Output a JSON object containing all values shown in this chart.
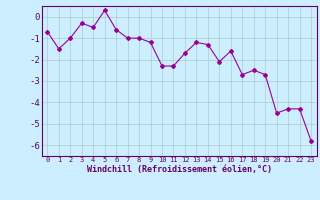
{
  "x": [
    0,
    1,
    2,
    3,
    4,
    5,
    6,
    7,
    8,
    9,
    10,
    11,
    12,
    13,
    14,
    15,
    16,
    17,
    18,
    19,
    20,
    21,
    22,
    23
  ],
  "y": [
    -0.7,
    -1.5,
    -1.0,
    -0.3,
    -0.5,
    0.3,
    -0.6,
    -1.0,
    -1.0,
    -1.2,
    -2.3,
    -2.3,
    -1.7,
    -1.2,
    -1.3,
    -2.1,
    -1.6,
    -2.7,
    -2.5,
    -2.7,
    -4.5,
    -4.3,
    -4.3,
    -5.8
  ],
  "line_color": "#990099",
  "marker": "D",
  "marker_size": 2.0,
  "line_width": 0.8,
  "bg_color": "#cceeff",
  "grid_color": "#aacccc",
  "xlabel": "Windchill (Refroidissement éolien,°C)",
  "xlabel_color": "#660066",
  "tick_color": "#660066",
  "ylim": [
    -6.5,
    0.5
  ],
  "yticks": [
    0,
    -1,
    -2,
    -3,
    -4,
    -5,
    -6
  ],
  "xticks": [
    0,
    1,
    2,
    3,
    4,
    5,
    6,
    7,
    8,
    9,
    10,
    11,
    12,
    13,
    14,
    15,
    16,
    17,
    18,
    19,
    20,
    21,
    22,
    23
  ],
  "xlim": [
    -0.5,
    23.5
  ]
}
